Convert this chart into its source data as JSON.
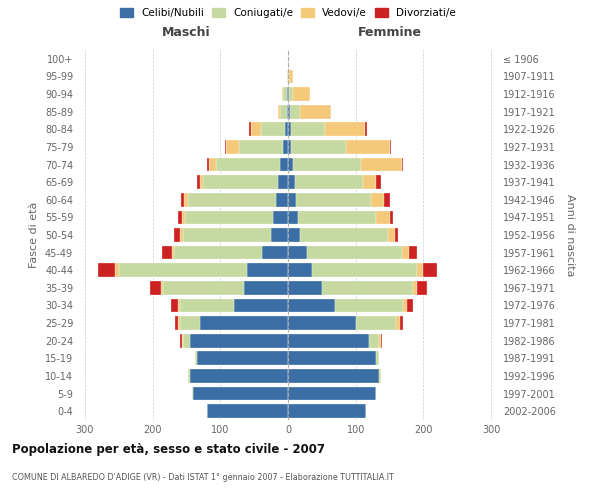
{
  "age_groups": [
    "0-4",
    "5-9",
    "10-14",
    "15-19",
    "20-24",
    "25-29",
    "30-34",
    "35-39",
    "40-44",
    "45-49",
    "50-54",
    "55-59",
    "60-64",
    "65-69",
    "70-74",
    "75-79",
    "80-84",
    "85-89",
    "90-94",
    "95-99",
    "100+"
  ],
  "birth_years": [
    "2002-2006",
    "1997-2001",
    "1992-1996",
    "1987-1991",
    "1982-1986",
    "1977-1981",
    "1972-1976",
    "1967-1971",
    "1962-1966",
    "1957-1961",
    "1952-1956",
    "1947-1951",
    "1942-1946",
    "1937-1941",
    "1932-1936",
    "1927-1931",
    "1922-1926",
    "1917-1921",
    "1912-1916",
    "1907-1911",
    "≤ 1906"
  ],
  "maschi": {
    "celibi": [
      120,
      140,
      145,
      135,
      145,
      130,
      80,
      65,
      60,
      38,
      25,
      22,
      18,
      15,
      12,
      8,
      5,
      2,
      2,
      0,
      0
    ],
    "coniugati": [
      0,
      1,
      2,
      3,
      10,
      30,
      80,
      120,
      190,
      130,
      130,
      130,
      130,
      110,
      95,
      65,
      35,
      10,
      5,
      1,
      0
    ],
    "vedovi": [
      0,
      0,
      0,
      0,
      2,
      2,
      2,
      3,
      5,
      3,
      5,
      5,
      5,
      5,
      10,
      18,
      15,
      3,
      2,
      0,
      0
    ],
    "divorziati": [
      0,
      0,
      0,
      0,
      2,
      5,
      10,
      15,
      25,
      15,
      8,
      5,
      5,
      5,
      2,
      2,
      2,
      0,
      0,
      0,
      0
    ]
  },
  "femmine": {
    "nubili": [
      115,
      130,
      135,
      130,
      120,
      100,
      70,
      50,
      35,
      28,
      18,
      15,
      12,
      10,
      8,
      5,
      4,
      3,
      2,
      0,
      0
    ],
    "coniugate": [
      0,
      0,
      2,
      5,
      15,
      60,
      100,
      135,
      155,
      140,
      130,
      115,
      110,
      100,
      100,
      80,
      50,
      15,
      5,
      2,
      0
    ],
    "vedove": [
      0,
      0,
      0,
      0,
      2,
      5,
      5,
      5,
      10,
      10,
      10,
      20,
      20,
      20,
      60,
      65,
      60,
      45,
      25,
      5,
      0
    ],
    "divorziate": [
      0,
      0,
      0,
      0,
      2,
      5,
      10,
      15,
      20,
      12,
      5,
      5,
      8,
      8,
      2,
      2,
      2,
      0,
      0,
      0,
      0
    ]
  },
  "colors": {
    "celibi": "#3A6EA5",
    "coniugati": "#C5D9A0",
    "vedovi": "#F5C97A",
    "divorziati": "#CC2222"
  },
  "legend_labels": [
    "Celibi/Nubili",
    "Coniugati/e",
    "Vedovi/e",
    "Divorziati/e"
  ],
  "title": "Popolazione per età, sesso e stato civile - 2007",
  "subtitle": "COMUNE DI ALBAREDO D'ADIGE (VR) - Dati ISTAT 1° gennaio 2007 - Elaborazione TUTTITALIA.IT",
  "ylabel_left": "Fasce di età",
  "ylabel_right": "Anni di nascita",
  "maschi_label": "Maschi",
  "femmine_label": "Femmine",
  "maschi_label_color": "#444444",
  "femmine_label_color": "#444444",
  "xlim": 310,
  "bg_color": "#ffffff",
  "grid_color": "#cccccc"
}
